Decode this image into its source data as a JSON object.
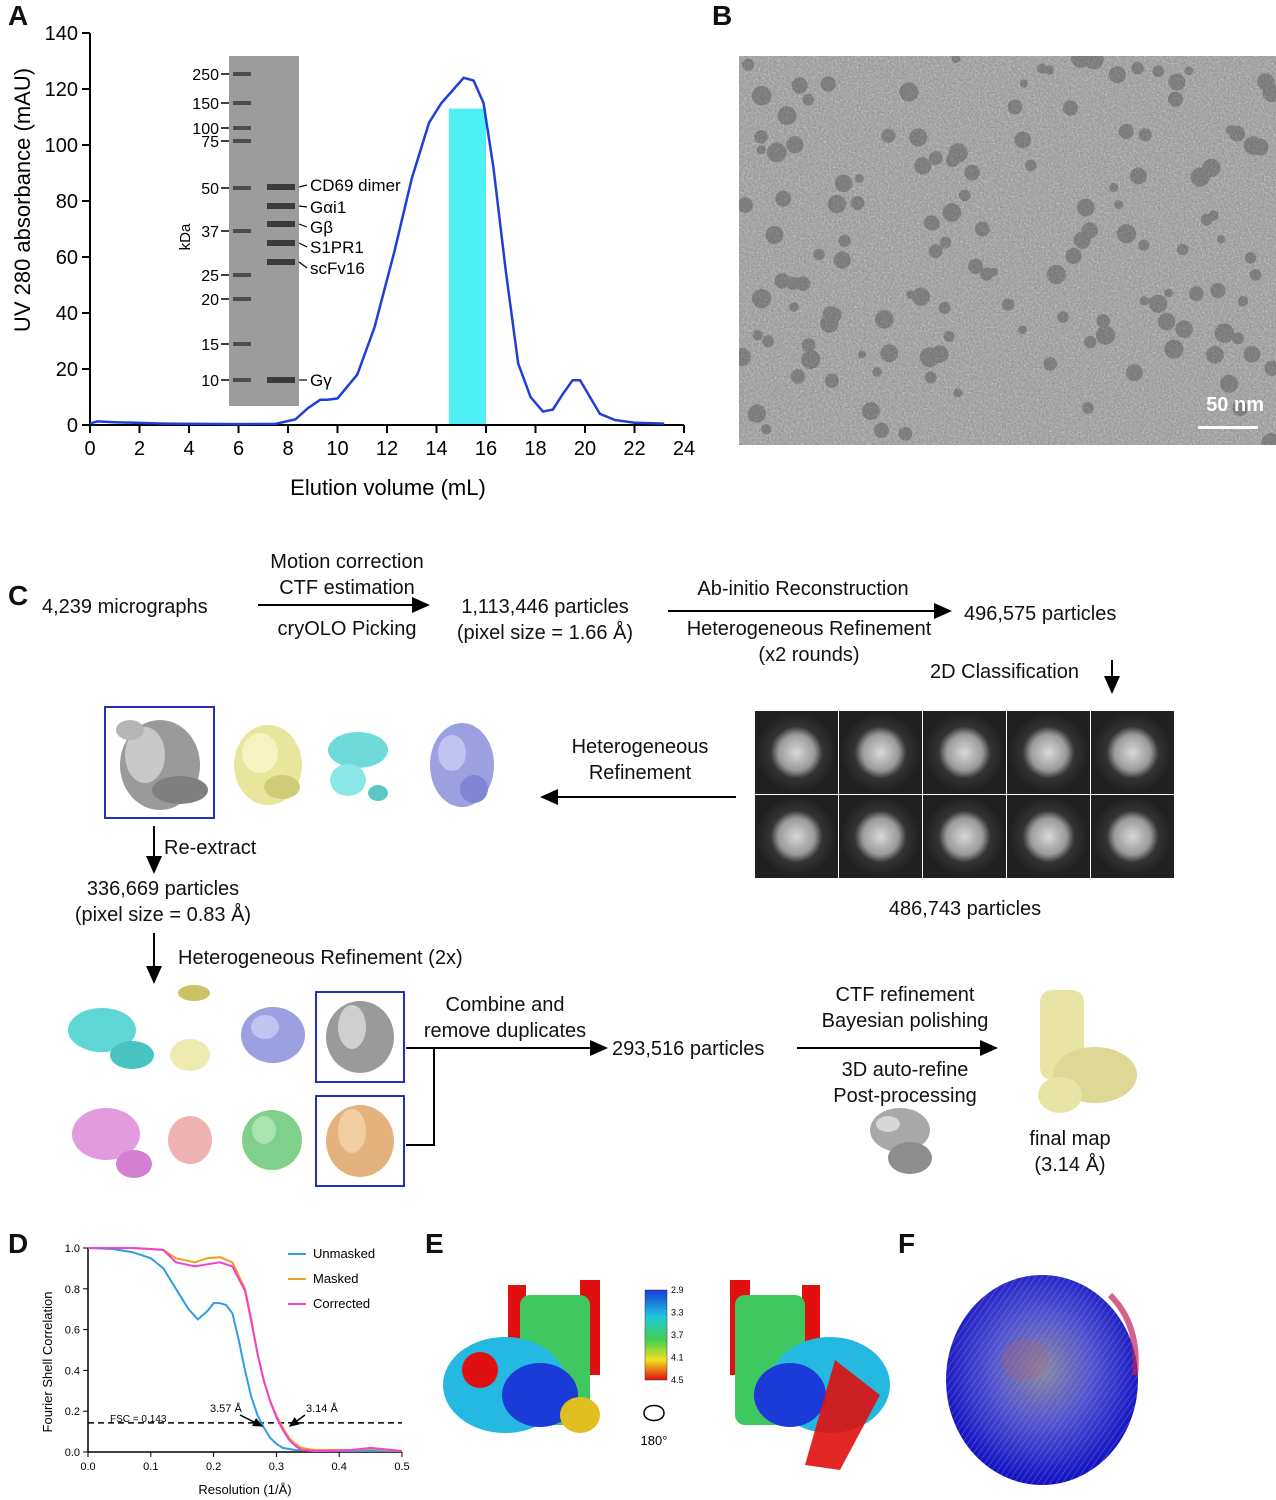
{
  "panels": {
    "A": "A",
    "B": "B",
    "C": "C",
    "D": "D",
    "E": "E",
    "F": "F"
  },
  "panel_a": {
    "ylabel": "UV 280 absorbance (mAU)",
    "xlabel": "Elution volume (mL)",
    "gel": {
      "unit": "kDa",
      "ladder": [
        "250",
        "150",
        "100",
        "75",
        "50",
        "37",
        "25",
        "20",
        "15",
        "10"
      ],
      "bands": [
        "CD69 dimer",
        "Gαi1",
        "Gβ",
        "S1PR1",
        "scFv16",
        "Gγ"
      ]
    }
  },
  "panel_b": {
    "scale_bar": "50 nm"
  },
  "panel_c": {
    "micrographs": "4,239 micrographs",
    "step1_top": [
      "Motion correction",
      "CTF estimation"
    ],
    "step1_bottom": "cryOLO Picking",
    "particles1": [
      "1,113,446 particles",
      "(pixel size = 1.66 Å)"
    ],
    "step2_top": "Ab-initio Reconstruction",
    "step2_bottom": [
      "Heterogeneous Refinement",
      "(x2 rounds)"
    ],
    "particles2": "496,575 particles",
    "class2d": "2D Classification",
    "particles3": "486,743 particles",
    "hetero": [
      "Heterogeneous",
      "Refinement"
    ],
    "reextract": "Re-extract",
    "particles4": [
      "336,669 particles",
      "(pixel size = 0.83 Å)"
    ],
    "hetero2x": "Heterogeneous Refinement (2x)",
    "combine": [
      "Combine and",
      "remove duplicates"
    ],
    "particles5": "293,516 particles",
    "refine_top": [
      "CTF refinement",
      "Bayesian polishing"
    ],
    "refine_bottom": [
      "3D auto-refine",
      "Post-processing"
    ],
    "final": [
      "final map",
      "(3.14 Å)"
    ]
  },
  "panel_d": {
    "ylabel": "Fourier Shell Correlation",
    "xlabel": "Resolution (1/Å)",
    "legend": [
      "Unmasked",
      "Masked",
      "Corrected"
    ],
    "threshold_label": "FSC = 0.143",
    "annot1": "3.57 Å",
    "annot2": "3.14 Å"
  },
  "panel_e": {
    "colorbar": [
      "2.9",
      "3.3",
      "3.7",
      "4.1",
      "4.5"
    ],
    "rotation": "180°"
  },
  "colors": {
    "sec_trace": "#1f3fd6",
    "fraction": "#4ff0f5",
    "unmasked": "#2e9ee0",
    "masked": "#f0a020",
    "corrected": "#f040d0",
    "box": "#2030c0"
  },
  "chart_data": [
    {
      "type": "line",
      "xlabel": "Elution volume (mL)",
      "ylabel": "UV 280 absorbance (mAU)",
      "xlim": [
        0,
        24
      ],
      "ylim": [
        0,
        140
      ],
      "xticks": [
        0,
        2,
        4,
        6,
        8,
        10,
        12,
        14,
        16,
        18,
        20,
        22,
        24
      ],
      "yticks": [
        0,
        20,
        40,
        60,
        80,
        100,
        120,
        140
      ],
      "series": [
        {
          "x": [
            0,
            0.3,
            1,
            3,
            6,
            7.5,
            8.3,
            8.8,
            9.3,
            9.6,
            10,
            10.8,
            11.5,
            12.3,
            13,
            13.7,
            14.2,
            14.7,
            15.1,
            15.5,
            15.9,
            16.3,
            16.8,
            17.3,
            17.8,
            18.3,
            18.7,
            19.1,
            19.5,
            19.8,
            20.2,
            20.6,
            21.2,
            22,
            23.2
          ],
          "y": [
            0.5,
            1.3,
            1,
            0.5,
            0.3,
            0.4,
            2,
            6,
            9,
            9,
            9.5,
            18,
            35,
            62,
            88,
            108,
            115,
            120,
            124,
            123,
            115,
            92,
            55,
            22,
            10,
            4.8,
            5.5,
            11,
            16,
            16,
            10,
            4,
            1.8,
            0.8,
            0.5
          ]
        }
      ],
      "highlight_x": [
        14.5,
        16
      ]
    },
    {
      "type": "line",
      "xlabel": "Resolution (1/Å)",
      "ylabel": "Fourier Shell Correlation",
      "xlim": [
        0,
        0.5
      ],
      "ylim": [
        0,
        1
      ],
      "xticks": [
        0.0,
        0.1,
        0.2,
        0.3,
        0.4,
        0.5
      ],
      "yticks": [
        0.0,
        0.2,
        0.4,
        0.6,
        0.8,
        1.0
      ],
      "threshold": 0.143,
      "series": [
        {
          "name": "Unmasked",
          "x": [
            0,
            0.04,
            0.07,
            0.1,
            0.12,
            0.14,
            0.16,
            0.175,
            0.19,
            0.2,
            0.21,
            0.22,
            0.23,
            0.24,
            0.25,
            0.26,
            0.27,
            0.28,
            0.29,
            0.3,
            0.31,
            0.33,
            0.36,
            0.4,
            0.5
          ],
          "y": [
            1,
            0.995,
            0.98,
            0.95,
            0.9,
            0.8,
            0.7,
            0.65,
            0.69,
            0.73,
            0.73,
            0.72,
            0.68,
            0.55,
            0.4,
            0.27,
            0.18,
            0.12,
            0.07,
            0.04,
            0.02,
            0.01,
            0.005,
            0.005,
            0.005
          ]
        },
        {
          "name": "Masked",
          "x": [
            0,
            0.07,
            0.1,
            0.12,
            0.14,
            0.155,
            0.17,
            0.19,
            0.21,
            0.23,
            0.25,
            0.26,
            0.27,
            0.28,
            0.29,
            0.3,
            0.31,
            0.32,
            0.33,
            0.34,
            0.36,
            0.38,
            0.42,
            0.45,
            0.5
          ],
          "y": [
            1,
            1,
            0.995,
            0.99,
            0.95,
            0.94,
            0.93,
            0.95,
            0.955,
            0.93,
            0.8,
            0.65,
            0.48,
            0.35,
            0.25,
            0.18,
            0.12,
            0.07,
            0.04,
            0.02,
            0.01,
            0.01,
            0.01,
            0.015,
            0.005
          ]
        },
        {
          "name": "Corrected",
          "x": [
            0,
            0.07,
            0.1,
            0.12,
            0.14,
            0.155,
            0.17,
            0.19,
            0.21,
            0.23,
            0.25,
            0.26,
            0.27,
            0.28,
            0.29,
            0.3,
            0.31,
            0.32,
            0.33,
            0.34,
            0.36,
            0.38,
            0.42,
            0.45,
            0.5
          ],
          "y": [
            1,
            1,
            0.995,
            0.99,
            0.93,
            0.92,
            0.91,
            0.92,
            0.93,
            0.91,
            0.79,
            0.64,
            0.48,
            0.35,
            0.25,
            0.17,
            0.11,
            0.06,
            0.03,
            0.01,
            0.005,
            0.005,
            0.01,
            0.02,
            0.005
          ]
        }
      ],
      "annotations": [
        {
          "text": "3.57 Å",
          "x": 0.28
        },
        {
          "text": "3.14 Å",
          "x": 0.318
        }
      ]
    }
  ]
}
